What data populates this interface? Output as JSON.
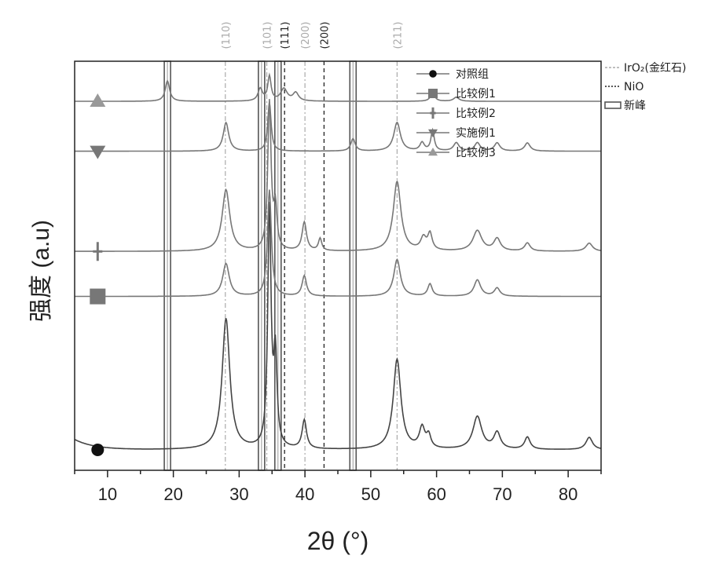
{
  "chart_data": {
    "type": "line",
    "title": "",
    "xlabel": "2θ (°)",
    "ylabel": "强度 (a.u)",
    "xlim": [
      5,
      85
    ],
    "xticks": [
      10,
      20,
      30,
      40,
      50,
      60,
      70,
      80
    ],
    "yticks_shown": false,
    "series": [
      {
        "name": "对照组",
        "marker": "circle",
        "marker_x": 8.5,
        "baseline": 0.05,
        "peaks": [
          [
            28.0,
            0.32,
            0.7
          ],
          [
            34.6,
            0.58,
            0.3
          ],
          [
            35.5,
            0.22,
            0.3
          ],
          [
            39.9,
            0.07,
            0.4
          ],
          [
            54.0,
            0.22,
            0.7
          ],
          [
            57.8,
            0.05,
            0.5
          ],
          [
            58.8,
            0.03,
            0.4
          ],
          [
            66.2,
            0.08,
            0.8
          ],
          [
            69.2,
            0.04,
            0.6
          ],
          [
            73.8,
            0.03,
            0.5
          ],
          [
            83.2,
            0.03,
            0.6
          ]
        ]
      },
      {
        "name": "比较例1",
        "marker": "square",
        "marker_x": 8.5,
        "baseline": 0.425,
        "peaks": [
          [
            28.0,
            0.08,
            0.6
          ],
          [
            34.6,
            0.26,
            0.35
          ],
          [
            39.9,
            0.05,
            0.4
          ],
          [
            54.0,
            0.09,
            0.6
          ],
          [
            59.0,
            0.03,
            0.4
          ],
          [
            66.2,
            0.04,
            0.6
          ],
          [
            69.2,
            0.02,
            0.5
          ]
        ]
      },
      {
        "name": "比较例2",
        "marker": "plus",
        "marker_x": 8.5,
        "baseline": 0.535,
        "peaks": [
          [
            28.0,
            0.15,
            0.7
          ],
          [
            34.6,
            0.36,
            0.3
          ],
          [
            35.5,
            0.1,
            0.3
          ],
          [
            39.9,
            0.07,
            0.4
          ],
          [
            42.3,
            0.03,
            0.3
          ],
          [
            54.0,
            0.17,
            0.7
          ],
          [
            58.0,
            0.03,
            0.5
          ],
          [
            59.0,
            0.04,
            0.4
          ],
          [
            66.2,
            0.05,
            0.8
          ],
          [
            69.2,
            0.03,
            0.6
          ],
          [
            73.8,
            0.02,
            0.5
          ],
          [
            83.2,
            0.02,
            0.6
          ]
        ]
      },
      {
        "name": "实施例1",
        "marker": "triangle-down",
        "marker_x": 8.5,
        "baseline": 0.78,
        "peaks": [
          [
            28.0,
            0.07,
            0.5
          ],
          [
            34.6,
            0.12,
            0.3
          ],
          [
            47.3,
            0.03,
            0.4
          ],
          [
            54.0,
            0.07,
            0.6
          ],
          [
            57.8,
            0.02,
            0.4
          ],
          [
            59.4,
            0.05,
            0.3
          ],
          [
            63.0,
            0.02,
            0.5
          ],
          [
            66.2,
            0.02,
            0.5
          ],
          [
            69.2,
            0.02,
            0.5
          ],
          [
            73.8,
            0.02,
            0.5
          ]
        ]
      },
      {
        "name": "比较例3",
        "marker": "triangle-up",
        "marker_x": 8.5,
        "baseline": 0.902,
        "peaks": [
          [
            19.1,
            0.05,
            0.4
          ],
          [
            33.2,
            0.03,
            0.4
          ],
          [
            34.6,
            0.06,
            0.3
          ],
          [
            36.8,
            0.03,
            0.6
          ],
          [
            38.6,
            0.02,
            0.5
          ],
          [
            59.4,
            0.02,
            0.4
          ],
          [
            63.0,
            0.01,
            0.5
          ]
        ]
      }
    ],
    "reference_lines": [
      {
        "x": 27.9,
        "label": "(110)",
        "type": "IrO2"
      },
      {
        "x": 34.2,
        "label": "(101)",
        "type": "IrO2"
      },
      {
        "x": 36.9,
        "label": "(111)",
        "type": "NiO"
      },
      {
        "x": 40.0,
        "label": "(200)",
        "type": "IrO2"
      },
      {
        "x": 42.9,
        "label": "(200)",
        "type": "NiO"
      },
      {
        "x": 54.0,
        "label": "(211)",
        "type": "IrO2"
      }
    ],
    "new_peak_bands": [
      19.1,
      33.4,
      35.9,
      47.3
    ],
    "legend_series_position": "top-right",
    "reference_legend": [
      {
        "type": "IrO2",
        "label": "IrO₂(金红石)"
      },
      {
        "type": "NiO",
        "label": "NiO"
      },
      {
        "type": "new",
        "label": "新峰"
      }
    ],
    "colors": {
      "IrO2": "#aaaaaa",
      "NiO": "#222222",
      "new": "#555555",
      "axis": "#222222",
      "series": "#777777"
    }
  }
}
